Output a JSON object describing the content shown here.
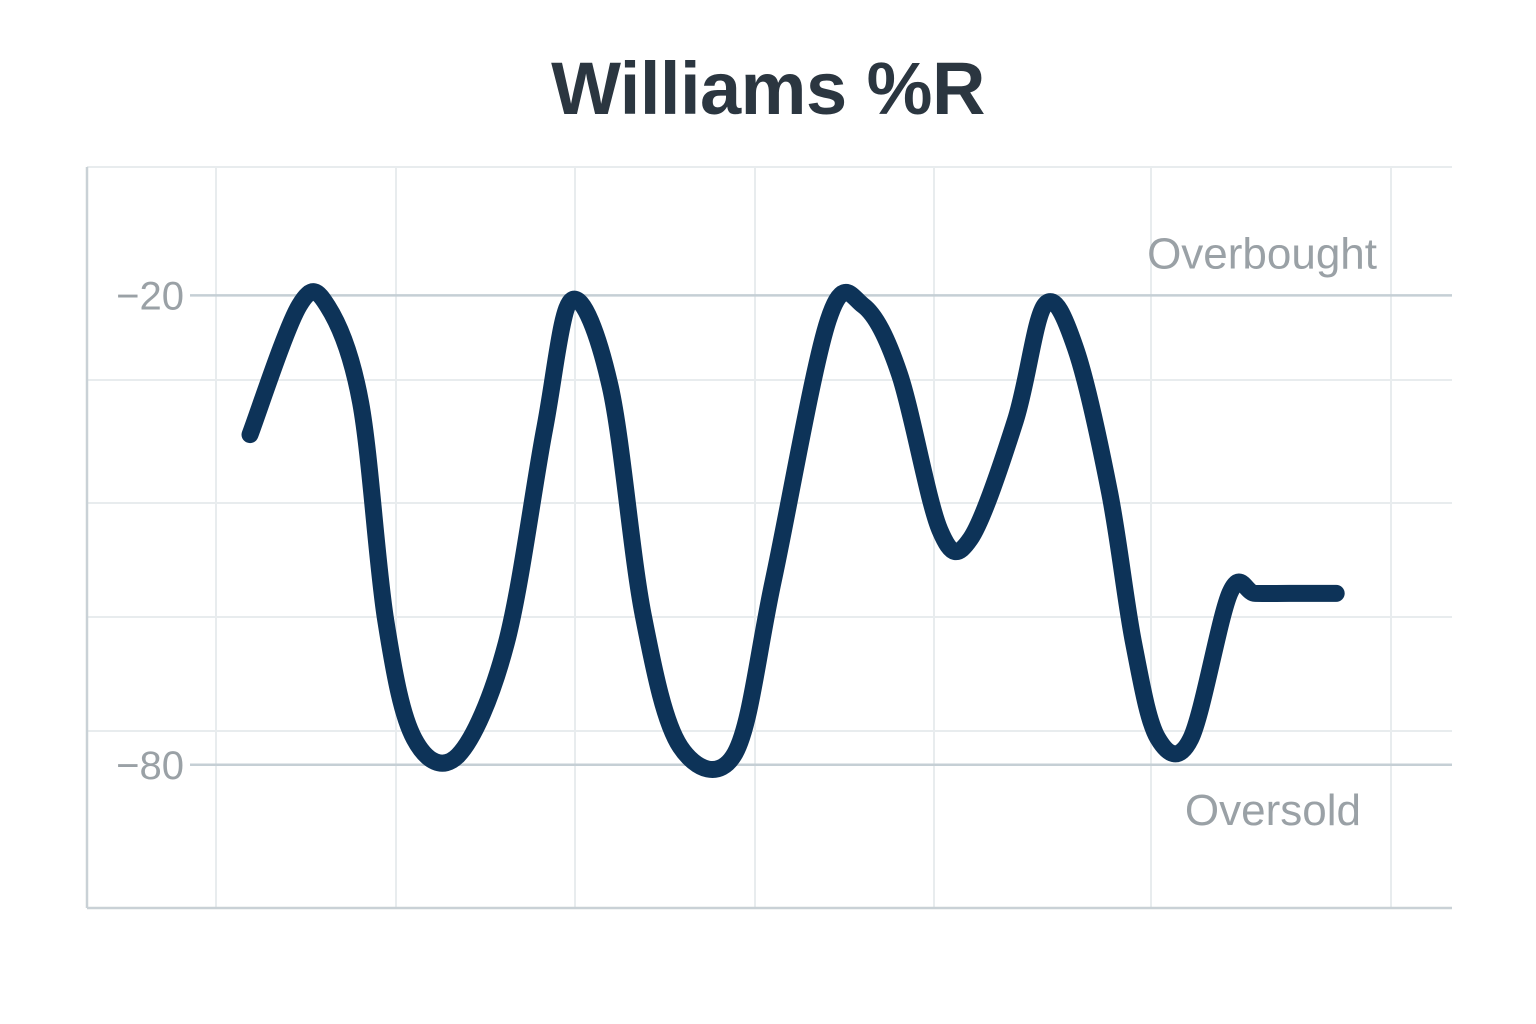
{
  "chart_data": {
    "type": "line",
    "title": "Williams %R",
    "xlabel": "",
    "ylabel": "",
    "ylim": [
      -98.3,
      -3.6
    ],
    "xlim": [
      0,
      100
    ],
    "grid": true,
    "yticks": [
      -20,
      -80
    ],
    "ytick_labels": [
      "−20",
      "−80"
    ],
    "reference_lines": [
      {
        "value": -20,
        "label": "Overbought"
      },
      {
        "value": -80,
        "label": "Oversold"
      }
    ],
    "series": [
      {
        "color": "#0d3358",
        "x": [
          0,
          4.5,
          7.1,
          10.1,
          12.4,
          15.0,
          19.0,
          23.4,
          26.9,
          29.4,
          32.9,
          35.9,
          39.3,
          44.3,
          47.8,
          52.8,
          56.0,
          59.3,
          63.0,
          65.8,
          69.9,
          72.6,
          75.4,
          78.5,
          80.7,
          82.9,
          85.9,
          89.5,
          91.8,
          94.9,
          99.2
        ],
        "y": [
          -37.8,
          -21.3,
          -21.4,
          -33.7,
          -61.6,
          -76.7,
          -78.8,
          -64.5,
          -37.1,
          -20.6,
          -31.7,
          -60.8,
          -77.7,
          -78.5,
          -56.4,
          -23.2,
          -21.3,
          -30.0,
          -50.0,
          -51.1,
          -36.0,
          -21.2,
          -26.8,
          -45.2,
          -64.5,
          -76.6,
          -76.7,
          -58.0,
          -58.1,
          -58.1,
          -58.1
        ]
      }
    ]
  }
}
